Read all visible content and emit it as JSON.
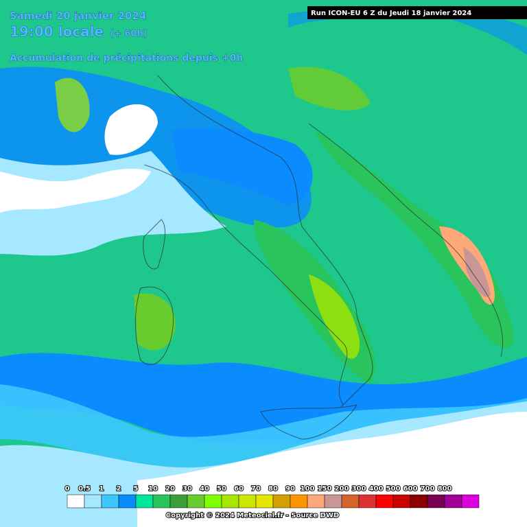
{
  "header": {
    "date": "Samedi 20 janvier 2024",
    "time": "19:00 locale",
    "offset": "(+ 60h)",
    "subtitle": "Accumulation de précipitations depuis +0h",
    "run": "Run ICON-EU 6 Z du Jeudi 18 janvier 2024"
  },
  "legend": {
    "labels": [
      "0",
      "0.5",
      "1",
      "2",
      "5",
      "10",
      "20",
      "30",
      "40",
      "50",
      "60",
      "70",
      "80",
      "90",
      "100",
      "150",
      "200",
      "300",
      "400",
      "500",
      "600",
      "700",
      "800"
    ],
    "colors": [
      "#ffffff",
      "#a6e8ff",
      "#3cc8ff",
      "#0a8cff",
      "#00e69a",
      "#2ac45c",
      "#3c9e3a",
      "#68cc2e",
      "#80ff00",
      "#a8e600",
      "#cce600",
      "#e6e600",
      "#d4a000",
      "#ff9600",
      "#ffa878",
      "#c89696",
      "#d2642c",
      "#dc3232",
      "#ff0000",
      "#c80000",
      "#8c0000",
      "#780050",
      "#a00096",
      "#dc00dc"
    ]
  },
  "footer": {
    "copyright": "Copyright © 2024 Meteociel.fr - Source DWD"
  }
}
